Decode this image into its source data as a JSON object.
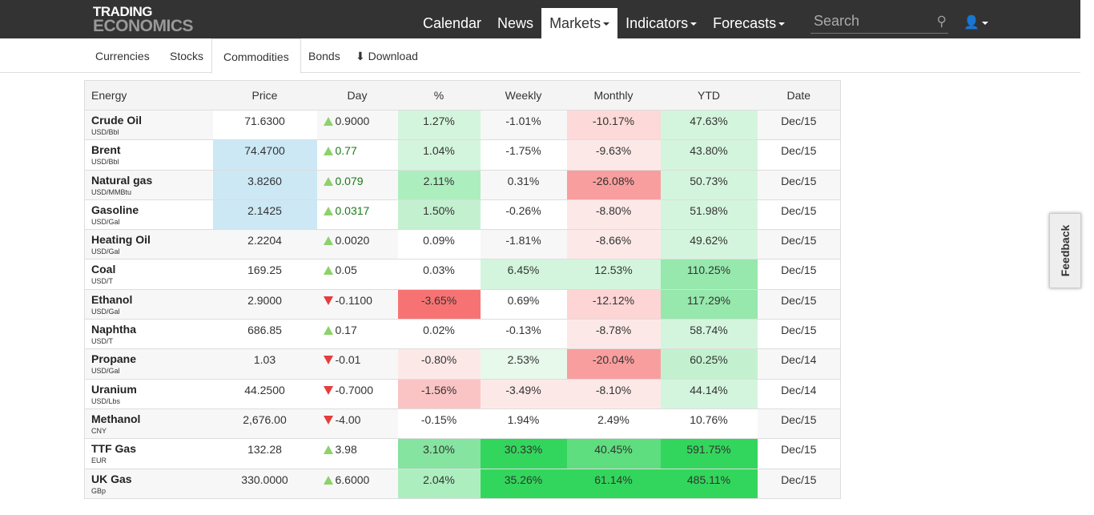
{
  "header": {
    "logo_line1": "TRADING",
    "logo_line2": "ECONOMICS",
    "nav": [
      {
        "label": "Calendar"
      },
      {
        "label": "News"
      },
      {
        "label": "Markets",
        "dropdown": true,
        "active": true
      },
      {
        "label": "Indicators",
        "dropdown": true
      },
      {
        "label": "Forecasts",
        "dropdown": true
      }
    ],
    "search_placeholder": "Search"
  },
  "subnav": {
    "items": [
      "Currencies",
      "Stocks",
      "Commodities",
      "Bonds"
    ],
    "active": "Commodities",
    "download_label": "Download"
  },
  "table": {
    "columns": [
      "Energy",
      "Price",
      "Day",
      "%",
      "Weekly",
      "Monthly",
      "YTD",
      "Date"
    ],
    "rows": [
      {
        "name": "Crude Oil",
        "unit": "USD/Bbl",
        "price": "71.6300",
        "day": "0.9000",
        "dir": "up",
        "pct": "1.27%",
        "weekly": "-1.01%",
        "monthly": "-10.17%",
        "ytd": "47.63%",
        "date": "Dec/15",
        "bg": [
          "#fff",
          "#d4f5dd",
          "",
          "#fdd9d9",
          "#d4f5dd"
        ]
      },
      {
        "name": "Brent",
        "unit": "USD/Bbl",
        "price": "74.4700",
        "day": "0.77",
        "dir": "up",
        "day_color": "#1a7a1a",
        "pct": "1.04%",
        "weekly": "-1.75%",
        "monthly": "-9.63%",
        "ytd": "43.80%",
        "date": "Dec/15",
        "bg": [
          "#cce8f5",
          "#d4f5dd",
          "",
          "#fde8e8",
          "#d4f5dd"
        ]
      },
      {
        "name": "Natural gas",
        "unit": "USD/MMBtu",
        "price": "3.8260",
        "day": "0.079",
        "dir": "up",
        "day_color": "#1a7a1a",
        "pct": "2.11%",
        "weekly": "0.31%",
        "monthly": "-26.08%",
        "ytd": "50.73%",
        "date": "Dec/15",
        "bg": [
          "#cce8f5",
          "#adeebf",
          "",
          "#f99e9e",
          "#d4f5dd"
        ]
      },
      {
        "name": "Gasoline",
        "unit": "USD/Gal",
        "price": "2.1425",
        "day": "0.0317",
        "dir": "up",
        "day_color": "#1a7a1a",
        "pct": "1.50%",
        "weekly": "-0.26%",
        "monthly": "-8.80%",
        "ytd": "51.98%",
        "date": "Dec/15",
        "bg": [
          "#cce8f5",
          "#c3f1cf",
          "",
          "#fde8e8",
          "#d4f5dd"
        ]
      },
      {
        "name": "Heating Oil",
        "unit": "USD/Gal",
        "price": "2.2204",
        "day": "0.0020",
        "dir": "up",
        "pct": "0.09%",
        "weekly": "-1.81%",
        "monthly": "-8.66%",
        "ytd": "49.62%",
        "date": "Dec/15",
        "bg": [
          "",
          "#fff",
          "",
          "#fde8e8",
          "#d4f5dd"
        ]
      },
      {
        "name": "Coal",
        "unit": "USD/T",
        "price": "169.25",
        "day": "0.05",
        "dir": "up",
        "pct": "0.03%",
        "weekly": "6.45%",
        "monthly": "12.53%",
        "ytd": "110.25%",
        "date": "Dec/15",
        "bg": [
          "",
          "",
          "#d4f5dd",
          "#d4f5dd",
          "#96e8ad"
        ]
      },
      {
        "name": "Ethanol",
        "unit": "USD/Gal",
        "price": "2.9000",
        "day": "-0.1100",
        "dir": "down",
        "pct": "-3.65%",
        "weekly": "0.69%",
        "monthly": "-12.12%",
        "ytd": "117.29%",
        "date": "Dec/15",
        "bg": [
          "",
          "#f77373",
          "#fff",
          "#fdd5d5",
          "#96e8ad"
        ]
      },
      {
        "name": "Naphtha",
        "unit": "USD/T",
        "price": "686.85",
        "day": "0.17",
        "dir": "up",
        "pct": "0.02%",
        "weekly": "-0.13%",
        "monthly": "-8.78%",
        "ytd": "58.74%",
        "date": "Dec/15",
        "bg": [
          "",
          "",
          "",
          "#fde8e8",
          "#d4f5dd"
        ]
      },
      {
        "name": "Propane",
        "unit": "USD/Gal",
        "price": "1.03",
        "day": "-0.01",
        "dir": "down",
        "pct": "-0.80%",
        "weekly": "2.53%",
        "monthly": "-20.04%",
        "ytd": "60.25%",
        "date": "Dec/14",
        "bg": [
          "",
          "#fde8e8",
          "#e6f9eb",
          "#f99e9e",
          "#c3f1cf"
        ]
      },
      {
        "name": "Uranium",
        "unit": "USD/Lbs",
        "price": "44.2500",
        "day": "-0.7000",
        "dir": "down",
        "pct": "-1.56%",
        "weekly": "-3.49%",
        "monthly": "-8.10%",
        "ytd": "44.14%",
        "date": "Dec/14",
        "bg": [
          "",
          "#fbc4c4",
          "#fde8e8",
          "#fde8e8",
          "#d4f5dd"
        ]
      },
      {
        "name": "Methanol",
        "unit": "CNY",
        "price": "2,676.00",
        "day": "-4.00",
        "dir": "down",
        "pct": "-0.15%",
        "weekly": "1.94%",
        "monthly": "2.49%",
        "ytd": "10.76%",
        "date": "Dec/15",
        "bg": [
          "",
          "#fff",
          "#fff",
          "#fff",
          "#fff"
        ]
      },
      {
        "name": "TTF Gas",
        "unit": "EUR",
        "price": "132.28",
        "day": "3.98",
        "dir": "up",
        "pct": "3.10%",
        "weekly": "30.33%",
        "monthly": "40.45%",
        "ytd": "591.75%",
        "date": "Dec/15",
        "bg": [
          "",
          "#85e4a0",
          "#33d65c",
          "#5ede7e",
          "#33d65c"
        ]
      },
      {
        "name": "UK Gas",
        "unit": "GBp",
        "price": "330.0000",
        "day": "6.6000",
        "dir": "up",
        "pct": "2.04%",
        "weekly": "35.26%",
        "monthly": "61.14%",
        "ytd": "485.11%",
        "date": "Dec/15",
        "bg": [
          "",
          "#adeebf",
          "#33d65c",
          "#33d65c",
          "#33d65c"
        ]
      }
    ]
  },
  "feedback_label": "Feedback"
}
